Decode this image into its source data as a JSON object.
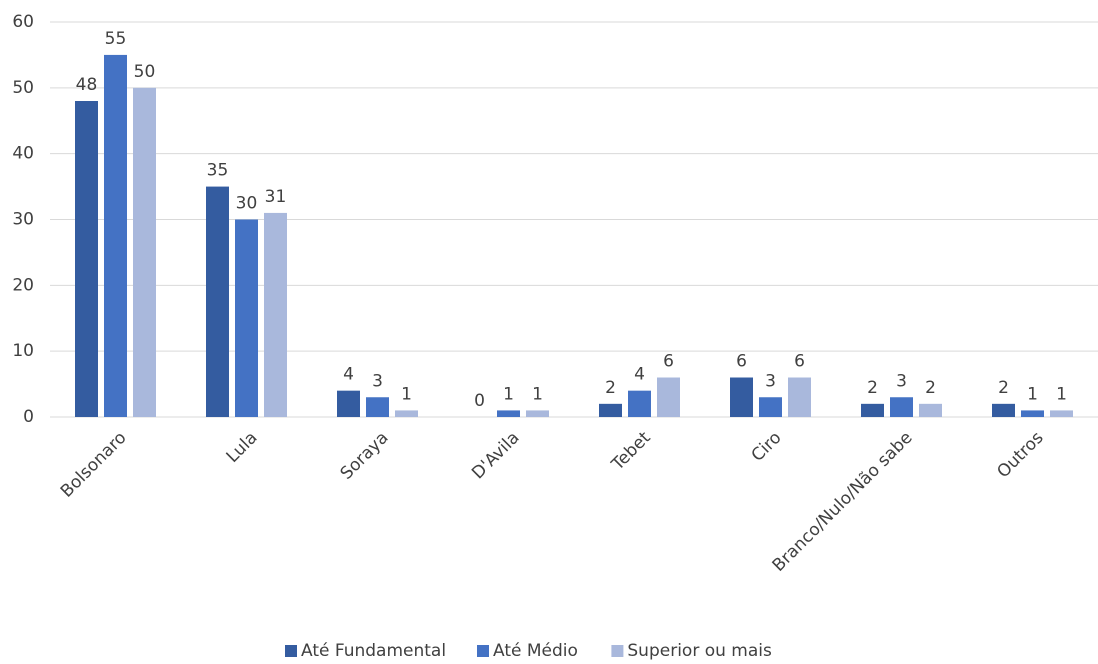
{
  "chart_data": {
    "type": "bar",
    "categories": [
      "Bolsonaro",
      "Lula",
      "Soraya",
      "D'Avila",
      "Tebet",
      "Ciro",
      "Branco/Nulo/Não sabe",
      "Outros"
    ],
    "series": [
      {
        "name": "Até Fundamental",
        "color": "#345ca0",
        "values": [
          48,
          35,
          4,
          0,
          2,
          6,
          2,
          2
        ]
      },
      {
        "name": "Até Médio",
        "color": "#4472c4",
        "values": [
          55,
          30,
          3,
          1,
          4,
          3,
          3,
          1
        ]
      },
      {
        "name": "Superior ou mais",
        "color": "#a9b8dc",
        "values": [
          50,
          31,
          1,
          1,
          6,
          6,
          2,
          1
        ]
      }
    ],
    "ylim": [
      0,
      60
    ],
    "yticks": [
      0,
      10,
      20,
      30,
      40,
      50,
      60
    ],
    "grid": true,
    "legend": "bottom"
  }
}
